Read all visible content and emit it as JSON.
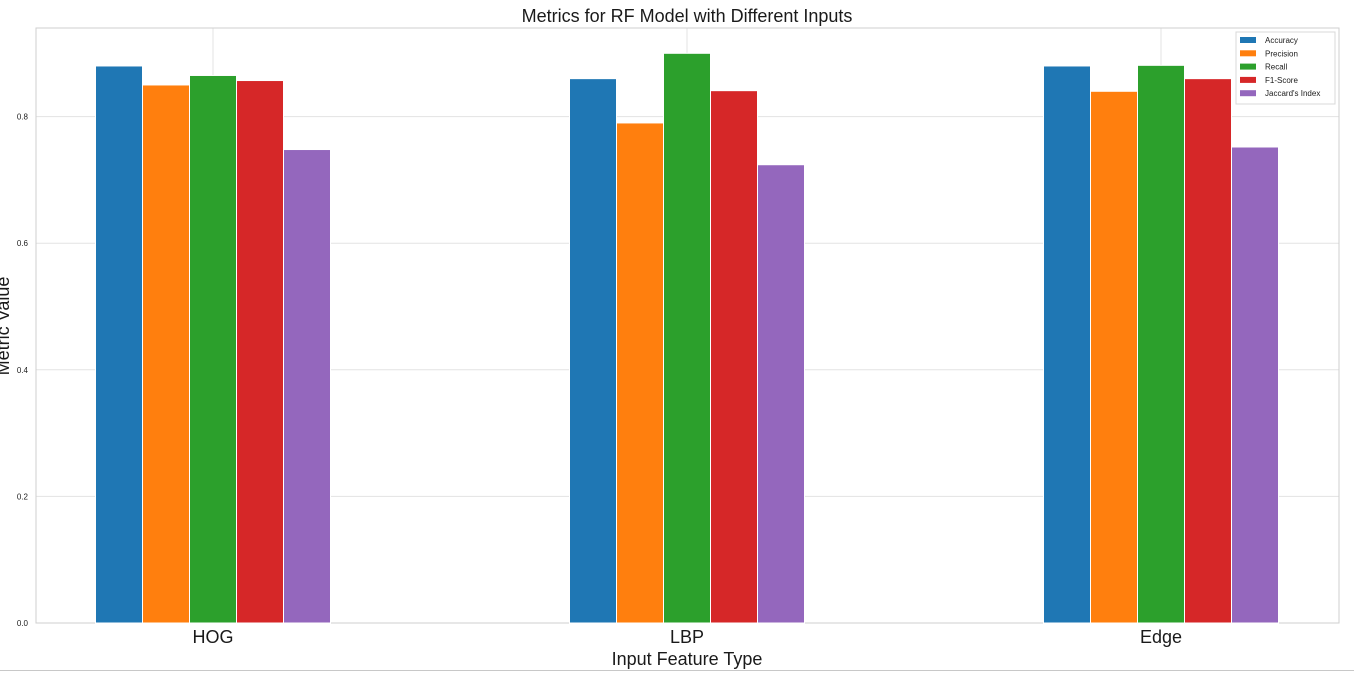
{
  "chart_data": {
    "type": "bar",
    "title": "Metrics for RF Model with Different Inputs",
    "xlabel": "Input Feature Type",
    "ylabel": "Metric Value",
    "categories": [
      "HOG",
      "LBP",
      "Edge"
    ],
    "ylim": [
      0,
      0.94
    ],
    "yticks": [
      "0.0",
      "0.2",
      "0.4",
      "0.6",
      "0.8"
    ],
    "grid": true,
    "legend_position": "top-right",
    "series": [
      {
        "name": "Accuracy",
        "color": "#1f77b4",
        "values": [
          0.88,
          0.86,
          0.88
        ]
      },
      {
        "name": "Precision",
        "color": "#ff7f0e",
        "values": [
          0.85,
          0.79,
          0.84
        ]
      },
      {
        "name": "Recall",
        "color": "#2ca02c",
        "values": [
          0.865,
          0.9,
          0.881
        ]
      },
      {
        "name": "F1-Score",
        "color": "#d62728",
        "values": [
          0.857,
          0.841,
          0.86
        ]
      },
      {
        "name": "Jaccard's Index",
        "color": "#9467bd",
        "values": [
          0.748,
          0.724,
          0.752
        ]
      }
    ]
  }
}
